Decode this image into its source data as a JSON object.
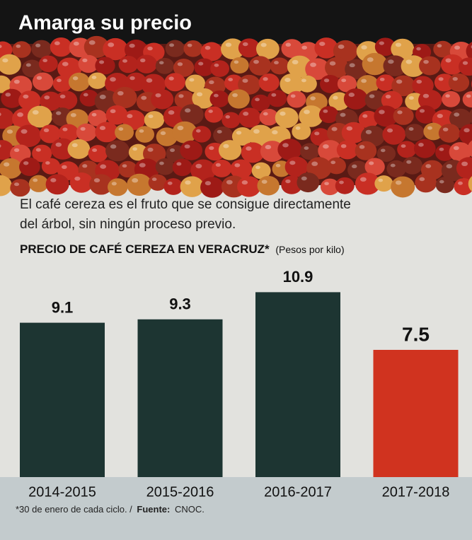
{
  "chart_data": {
    "type": "bar",
    "title": "Amarga su precio",
    "description": [
      "El café cereza es el fruto que se consigue directamente",
      "del árbol, sin ningún proceso previo."
    ],
    "chart_title": "PRECIO DE CAFÉ CEREZA EN VERACRUZ*",
    "unit": "(Pesos por kilo)",
    "categories": [
      "2014-2015",
      "2015-2016",
      "2016-2017",
      "2017-2018"
    ],
    "values": [
      9.1,
      9.3,
      10.9,
      7.5
    ],
    "colors": [
      "#1d3532",
      "#1d3532",
      "#1d3532",
      "#d0331f"
    ],
    "note": "*30 de enero de cada ciclo. /",
    "source_label": "Fuente:",
    "source": "CNOC."
  }
}
